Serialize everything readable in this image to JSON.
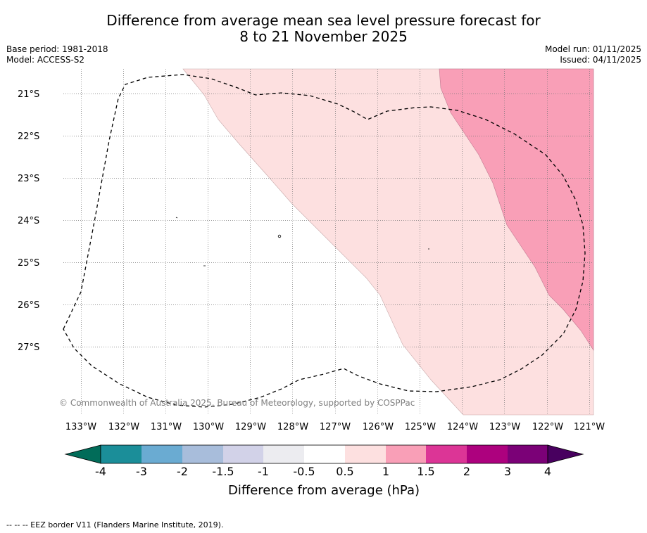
{
  "title": {
    "line1": "Difference from average mean sea level pressure forecast for",
    "line2": "8 to 21 November 2025"
  },
  "meta": {
    "base_period": "Base period: 1981-2018",
    "model": "Model: ACCESS-S2",
    "model_run": "Model run: 01/11/2025",
    "issued": "Issued: 04/11/2025"
  },
  "map": {
    "lat_labels": [
      "21°S",
      "22°S",
      "23°S",
      "24°S",
      "25°S",
      "26°S",
      "27°S"
    ],
    "lon_labels": [
      "133°W",
      "132°W",
      "131°W",
      "130°W",
      "129°W",
      "128°W",
      "127°W",
      "126°W",
      "125°W",
      "124°W",
      "123°W",
      "122°W",
      "121°W"
    ],
    "copyright": "© Commonwealth of Australia 2025, Bureau of Meteorology, supported by COSPPac",
    "anomaly_regions": [
      "0.5 to 1",
      "1 to 1.5"
    ]
  },
  "colorbar": {
    "title": "Difference from average (hPa)",
    "ticks": [
      "-4",
      "-3",
      "-2",
      "-1.5",
      "-1",
      "-0.5",
      "0.5",
      "1",
      "1.5",
      "2",
      "3",
      "4"
    ],
    "colors": [
      "#1b8e99",
      "#6aabd2",
      "#a8bddb",
      "#d2d2e8",
      "#ececf0",
      "#ffffff",
      "#fde0e0",
      "#f99fb7",
      "#dc3596",
      "#ad017e",
      "#7b0177"
    ],
    "extend_low_color": "#016c59",
    "extend_high_color": "#48005f",
    "fill_0_5_to_1": "#fde0e0",
    "fill_1_to_1_5": "#f99fb7"
  },
  "footnote": "-- -- -- EEZ border V11 (Flanders Marine Institute, 2019)."
}
